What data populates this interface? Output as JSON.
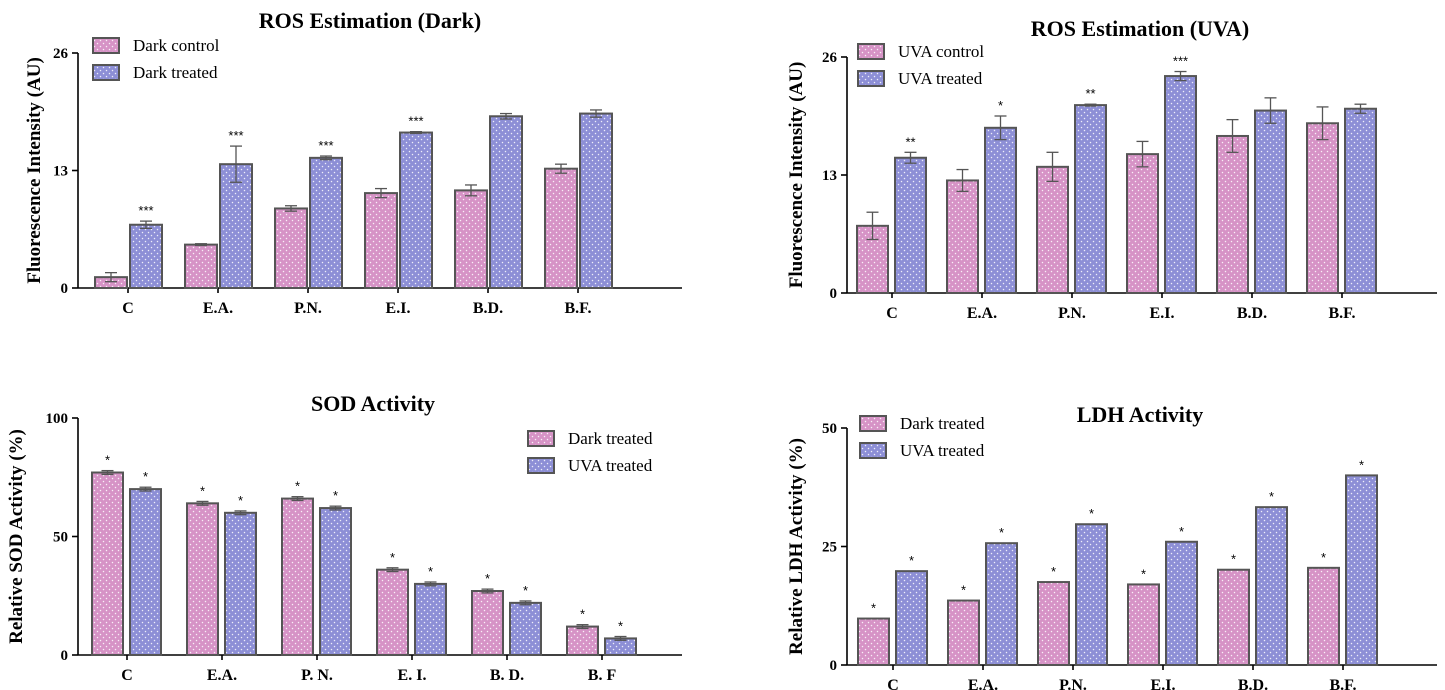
{
  "colors": {
    "series_a": "#d693c6",
    "series_b": "#8d8fd6",
    "dots": "#ffffff"
  },
  "chart_data": [
    {
      "type": "bar",
      "title": "ROS Estimation (Dark)",
      "xlabel": "",
      "ylabel": "Fluorescence Intensity (AU)",
      "ylim": [
        0,
        26
      ],
      "yticks": [
        "0",
        "13",
        "26"
      ],
      "legend_position": "top-left",
      "categories": [
        "C",
        "E.A.",
        "P.N.",
        "E.I.",
        "B.D.",
        "B.F."
      ],
      "series": [
        {
          "name": "Dark control",
          "values": [
            1.2,
            4.8,
            8.8,
            10.5,
            10.8,
            13.2
          ],
          "errors": [
            0.5,
            0.1,
            0.3,
            0.5,
            0.6,
            0.5
          ],
          "sig": [
            "",
            "",
            "",
            "",
            "",
            ""
          ]
        },
        {
          "name": "Dark treated",
          "values": [
            7.0,
            13.7,
            14.4,
            17.2,
            19.0,
            19.3
          ],
          "errors": [
            0.4,
            2.0,
            0.2,
            0.1,
            0.3,
            0.4
          ],
          "sig": [
            "***",
            "***",
            "***",
            "***",
            "",
            ""
          ]
        }
      ]
    },
    {
      "type": "bar",
      "title": "ROS Estimation (UVA)",
      "xlabel": "",
      "ylabel": "Fluorescence Intensity (AU)",
      "ylim": [
        0,
        26
      ],
      "yticks": [
        "0",
        "13",
        "26"
      ],
      "legend_position": "top-left",
      "categories": [
        "C",
        "E.A.",
        "P.N.",
        "E.I.",
        "B.D.",
        "B.F."
      ],
      "series": [
        {
          "name": "UVA control",
          "values": [
            7.4,
            12.4,
            13.9,
            15.3,
            17.3,
            18.7
          ],
          "errors": [
            1.5,
            1.2,
            1.6,
            1.4,
            1.8,
            1.8
          ],
          "sig": [
            "",
            "",
            "",
            "",
            "",
            ""
          ]
        },
        {
          "name": "UVA treated",
          "values": [
            14.9,
            18.2,
            20.7,
            23.9,
            20.1,
            20.3
          ],
          "errors": [
            0.6,
            1.3,
            0.1,
            0.5,
            1.4,
            0.5
          ],
          "sig": [
            "**",
            "*",
            "**",
            "***",
            "",
            ""
          ]
        }
      ]
    },
    {
      "type": "bar",
      "title": "SOD Activity",
      "xlabel": "",
      "ylabel": "Relative SOD Activity (%)",
      "ylim": [
        0,
        100
      ],
      "yticks": [
        "0",
        "50",
        "100"
      ],
      "legend_position": "top-right",
      "categories": [
        "C",
        "E.A.",
        "P. N.",
        "E. I.",
        "B. D.",
        "B. F"
      ],
      "series": [
        {
          "name": "Dark treated",
          "values": [
            77,
            64,
            66,
            36,
            27,
            12
          ],
          "errors": [
            0.8,
            0.8,
            0.8,
            0.8,
            0.8,
            0.8
          ],
          "sig": [
            "*",
            "*",
            "*",
            "*",
            "*",
            "*"
          ]
        },
        {
          "name": "UVA treated",
          "values": [
            70,
            60,
            62,
            30,
            22,
            7
          ],
          "errors": [
            0.8,
            0.8,
            0.8,
            0.8,
            0.8,
            0.8
          ],
          "sig": [
            "*",
            "*",
            "*",
            "*",
            "*",
            "*"
          ]
        }
      ]
    },
    {
      "type": "bar",
      "title": "LDH Activity",
      "xlabel": "",
      "ylabel": "Relative LDH Activity (%)",
      "ylim": [
        0,
        50
      ],
      "yticks": [
        "0",
        "25",
        "50"
      ],
      "legend_position": "top-left",
      "categories": [
        "C",
        "E.A.",
        "P.N.",
        "E.I.",
        "B.D.",
        "B.F."
      ],
      "series": [
        {
          "name": "Dark treated",
          "values": [
            9.8,
            13.6,
            17.5,
            17.0,
            20.1,
            20.5
          ],
          "errors": [
            0,
            0,
            0,
            0,
            0,
            0
          ],
          "sig": [
            "*",
            "*",
            "*",
            "*",
            "*",
            "*"
          ]
        },
        {
          "name": "UVA treated",
          "values": [
            19.8,
            25.7,
            29.7,
            26.0,
            33.3,
            40.0
          ],
          "errors": [
            0,
            0,
            0,
            0,
            0,
            0
          ],
          "sig": [
            "*",
            "*",
            "*",
            "*",
            "*",
            "*"
          ]
        }
      ]
    }
  ]
}
